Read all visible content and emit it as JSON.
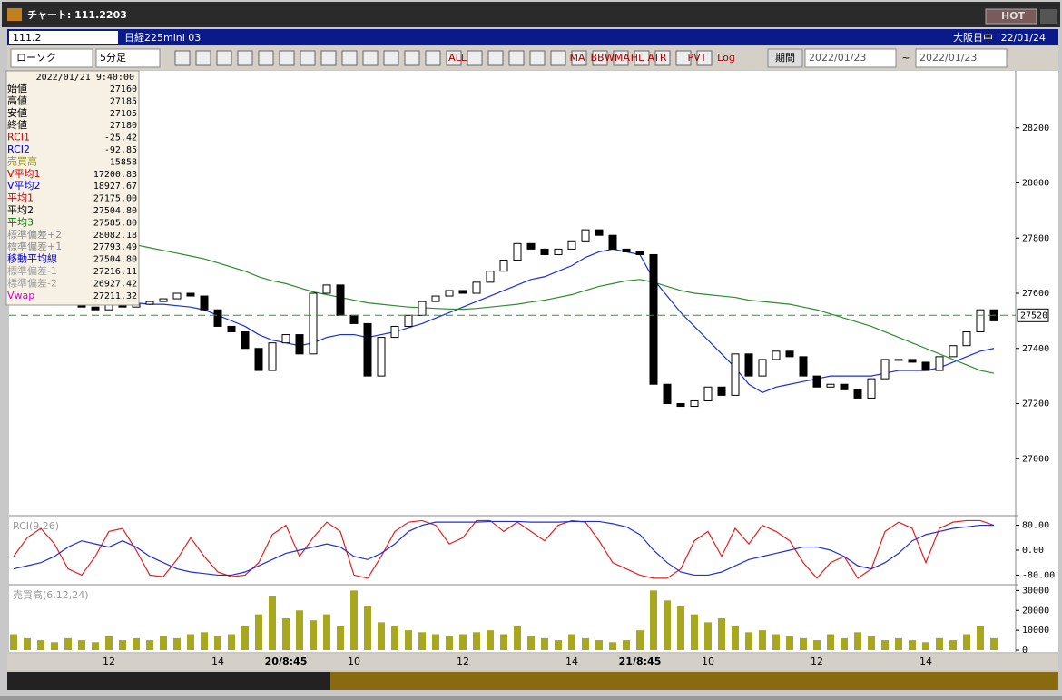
{
  "window": {
    "title": "チャート: 111.2203",
    "hot": "HOT"
  },
  "toolbar": {
    "symbol_code": "111.2",
    "symbol_name": "日経225mini 03",
    "session": "大阪日中",
    "date": "22/01/24",
    "chart_kind": "ローソク",
    "interval": "5分足",
    "period_button": "期間",
    "from": "2022/01/23",
    "tilde": "~",
    "to": "2022/01/23",
    "icon_labels": [
      "ALL",
      "MA",
      "BB",
      "WMA",
      "HL",
      "ATR",
      "PVT",
      "Log"
    ]
  },
  "info_panel": {
    "datetime": "2022/01/21 9:40:00",
    "rows": [
      {
        "label": "始値",
        "value": "27160",
        "color": "#000000"
      },
      {
        "label": "高値",
        "value": "27185",
        "color": "#000000"
      },
      {
        "label": "安値",
        "value": "27105",
        "color": "#000000"
      },
      {
        "label": "終値",
        "value": "27180",
        "color": "#000000"
      },
      {
        "label": "RCI1",
        "value": "-25.42",
        "color": "#d00000"
      },
      {
        "label": "RCI2",
        "value": "-92.85",
        "color": "#0000d0"
      },
      {
        "label": "売買高",
        "value": "15858",
        "color": "#9a9a00"
      },
      {
        "label": "V平均1",
        "value": "17200.83",
        "color": "#d00000"
      },
      {
        "label": "V平均2",
        "value": "18927.67",
        "color": "#0000d0"
      },
      {
        "label": "平均1",
        "value": "27175.00",
        "color": "#d00000"
      },
      {
        "label": "平均2",
        "value": "27504.80",
        "color": "#000000"
      },
      {
        "label": "平均3",
        "value": "27585.80",
        "color": "#008000"
      },
      {
        "label": "標準偏差+2",
        "value": "28082.18",
        "color": "#909090"
      },
      {
        "label": "標準偏差+1",
        "value": "27793.49",
        "color": "#909090"
      },
      {
        "label": "移動平均線",
        "value": "27504.80",
        "color": "#0000d0"
      },
      {
        "label": "標準偏差-1",
        "value": "27216.11",
        "color": "#a0a0a0"
      },
      {
        "label": "標準偏差-2",
        "value": "26927.42",
        "color": "#a0a0a0"
      },
      {
        "label": "Vwap",
        "value": "27211.32",
        "color": "#d000d0"
      }
    ]
  },
  "chart_data": [
    {
      "type": "candlestick",
      "categories": [
        null,
        null,
        null,
        null,
        null,
        null,
        null,
        "12",
        null,
        null,
        null,
        null,
        null,
        null,
        null,
        "14",
        null,
        null,
        null,
        null,
        "20/8:45",
        null,
        null,
        null,
        null,
        "10",
        null,
        null,
        null,
        null,
        null,
        null,
        null,
        "12",
        null,
        null,
        null,
        null,
        null,
        null,
        null,
        "14",
        null,
        null,
        null,
        null,
        "21/8:45",
        null,
        null,
        null,
        null,
        "10",
        null,
        null,
        null,
        null,
        null,
        null,
        null,
        "12",
        null,
        null,
        null,
        null,
        null,
        null,
        null,
        "14",
        null,
        null,
        null,
        null,
        null
      ],
      "open": [
        27630,
        27620,
        27600,
        27580,
        27570,
        27560,
        27550,
        27540,
        27560,
        27550,
        27560,
        27570,
        27580,
        27600,
        27590,
        27540,
        27480,
        27460,
        27400,
        27320,
        27420,
        27450,
        27380,
        27600,
        27630,
        27520,
        27490,
        27300,
        27440,
        27480,
        27520,
        27570,
        27590,
        27610,
        27600,
        27640,
        27680,
        27720,
        27780,
        27760,
        27740,
        27760,
        27790,
        27830,
        27810,
        27760,
        27750,
        27740,
        27270,
        27200,
        27190,
        27210,
        27260,
        27230,
        27380,
        27300,
        27360,
        27390,
        27370,
        27300,
        27260,
        27270,
        27250,
        27220,
        27290,
        27360,
        27360,
        27350,
        27320,
        27370,
        27410,
        27460,
        27540
      ],
      "close": [
        27620,
        27600,
        27580,
        27570,
        27560,
        27550,
        27540,
        27560,
        27550,
        27560,
        27570,
        27580,
        27600,
        27590,
        27540,
        27480,
        27460,
        27400,
        27320,
        27420,
        27450,
        27380,
        27600,
        27630,
        27520,
        27490,
        27300,
        27440,
        27480,
        27520,
        27570,
        27590,
        27610,
        27600,
        27640,
        27680,
        27720,
        27780,
        27760,
        27740,
        27760,
        27790,
        27830,
        27810,
        27760,
        27750,
        27740,
        27270,
        27200,
        27190,
        27210,
        27260,
        27230,
        27380,
        27300,
        27360,
        27390,
        27370,
        27300,
        27260,
        27270,
        27250,
        27220,
        27290,
        27360,
        27360,
        27350,
        27320,
        27370,
        27410,
        27460,
        27540,
        27500
      ],
      "up_color": "#ffffff",
      "down_color": "#000000",
      "series": [
        {
          "color": "#1c2fd0",
          "values": [
            27640,
            27630,
            27620,
            27610,
            27600,
            27590,
            27580,
            27575,
            27570,
            27565,
            27560,
            27560,
            27555,
            27550,
            27540,
            27520,
            27500,
            27480,
            27450,
            27430,
            27420,
            27410,
            27420,
            27440,
            27450,
            27450,
            27440,
            27450,
            27460,
            27475,
            27490,
            27510,
            27530,
            27550,
            27570,
            27590,
            27610,
            27630,
            27650,
            27660,
            27680,
            27700,
            27730,
            27750,
            27760,
            27750,
            27740,
            27650,
            27590,
            27530,
            27480,
            27430,
            27380,
            27330,
            27270,
            27240,
            27260,
            27270,
            27280,
            27290,
            27300,
            27300,
            27300,
            27300,
            27310,
            27320,
            27320,
            27320,
            27330,
            27350,
            27370,
            27390,
            27400
          ]
        },
        {
          "color": "#2e8b2e",
          "values": [
            27900,
            27880,
            27860,
            27840,
            27820,
            27810,
            27800,
            27790,
            27780,
            27775,
            27765,
            27755,
            27745,
            27735,
            27725,
            27710,
            27695,
            27680,
            27660,
            27645,
            27635,
            27620,
            27605,
            27595,
            27585,
            27575,
            27565,
            27560,
            27555,
            27550,
            27548,
            27545,
            27543,
            27542,
            27545,
            27550,
            27555,
            27560,
            27568,
            27575,
            27585,
            27595,
            27610,
            27625,
            27635,
            27645,
            27650,
            27640,
            27625,
            27610,
            27600,
            27595,
            27590,
            27585,
            27575,
            27570,
            27565,
            27560,
            27550,
            27540,
            27525,
            27510,
            27495,
            27480,
            27460,
            27440,
            27420,
            27400,
            27380,
            27360,
            27340,
            27320,
            27310
          ]
        }
      ],
      "ylim": [
        26800,
        28400
      ],
      "yticks": [
        27000,
        27200,
        27400,
        27600,
        27800,
        28000,
        28200
      ],
      "current_price": 27520,
      "current_color": "#22a022"
    },
    {
      "type": "line",
      "title": "RCI(9,26)",
      "series": [
        {
          "color": "#e02020",
          "values": [
            -20,
            40,
            70,
            20,
            -60,
            -80,
            -20,
            60,
            70,
            0,
            -80,
            -85,
            -30,
            40,
            -20,
            -70,
            -85,
            -80,
            -40,
            50,
            80,
            -20,
            40,
            90,
            60,
            -80,
            -90,
            -20,
            60,
            90,
            95,
            80,
            20,
            40,
            95,
            95,
            60,
            90,
            60,
            30,
            80,
            95,
            90,
            30,
            -40,
            -60,
            -80,
            -90,
            -90,
            -60,
            30,
            60,
            -20,
            70,
            20,
            80,
            60,
            30,
            -40,
            -90,
            -40,
            -20,
            -90,
            -60,
            60,
            90,
            70,
            -40,
            70,
            90,
            95,
            95,
            80
          ]
        },
        {
          "color": "#2030d0",
          "values": [
            -60,
            -50,
            -40,
            -20,
            10,
            30,
            20,
            10,
            30,
            10,
            -20,
            -40,
            -60,
            -70,
            -75,
            -80,
            -80,
            -70,
            -50,
            -30,
            -10,
            0,
            10,
            20,
            10,
            -20,
            -30,
            -10,
            20,
            60,
            80,
            90,
            90,
            90,
            90,
            92,
            92,
            92,
            90,
            90,
            90,
            92,
            92,
            92,
            85,
            75,
            50,
            0,
            -40,
            -70,
            -80,
            -80,
            -70,
            -50,
            -30,
            -20,
            -10,
            0,
            10,
            10,
            0,
            -20,
            -50,
            -60,
            -40,
            -10,
            30,
            50,
            60,
            70,
            75,
            80,
            80
          ]
        }
      ],
      "ylim": [
        -105,
        105
      ],
      "yticks": [
        {
          "value": 80,
          "label": "80.00"
        },
        {
          "value": 0,
          "label": "0.00"
        },
        {
          "value": -80,
          "label": "-80.00"
        }
      ]
    },
    {
      "type": "bar",
      "title": "売買高(6,12,24)",
      "color": "#a8a820",
      "values": [
        8000,
        6000,
        5000,
        4000,
        6000,
        5000,
        4000,
        7000,
        5000,
        6000,
        5000,
        7000,
        6000,
        8000,
        9000,
        7000,
        8000,
        12000,
        18000,
        27000,
        16000,
        20000,
        15000,
        18000,
        12000,
        30000,
        22000,
        14000,
        12000,
        10000,
        9000,
        8000,
        7000,
        8000,
        9000,
        10000,
        8000,
        12000,
        7000,
        6000,
        5000,
        8000,
        6000,
        5000,
        4000,
        5000,
        10000,
        30000,
        25000,
        22000,
        18000,
        14000,
        16000,
        12000,
        9000,
        10000,
        8000,
        7000,
        6000,
        5000,
        8000,
        6000,
        9000,
        7000,
        5000,
        6000,
        5000,
        4000,
        6000,
        5000,
        8000,
        12000,
        6000
      ],
      "ylim": [
        0,
        32000
      ],
      "yticks": [
        0,
        10000,
        20000,
        30000
      ]
    }
  ]
}
